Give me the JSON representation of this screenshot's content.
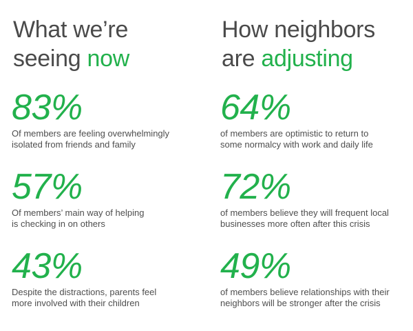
{
  "left": {
    "heading_line1": "What we’re",
    "heading_line2_plain": "seeing ",
    "heading_line2_accent": "now",
    "stats": [
      {
        "value": "83%",
        "text": "Of members are feeling overwhelmingly\nisolated from friends and family"
      },
      {
        "value": "57%",
        "text": "Of members’ main way of helping\nis checking in on others"
      },
      {
        "value": "43%",
        "text": "Despite the distractions, parents feel\nmore involved with their children"
      }
    ]
  },
  "right": {
    "heading_line1": "How neighbors",
    "heading_line2_plain": "are ",
    "heading_line2_accent": "adjusting",
    "stats": [
      {
        "value": "64%",
        "text": "of members are optimistic to return to\nsome normalcy with work and daily life"
      },
      {
        "value": "72%",
        "text": "of members believe they will frequent local\nbusinesses more often after this crisis"
      },
      {
        "value": "49%",
        "text": "of members believe relationships with their\nneighbors will be stronger after the crisis"
      }
    ]
  },
  "colors": {
    "accent": "#22b14c",
    "text": "#4a4a4a"
  }
}
